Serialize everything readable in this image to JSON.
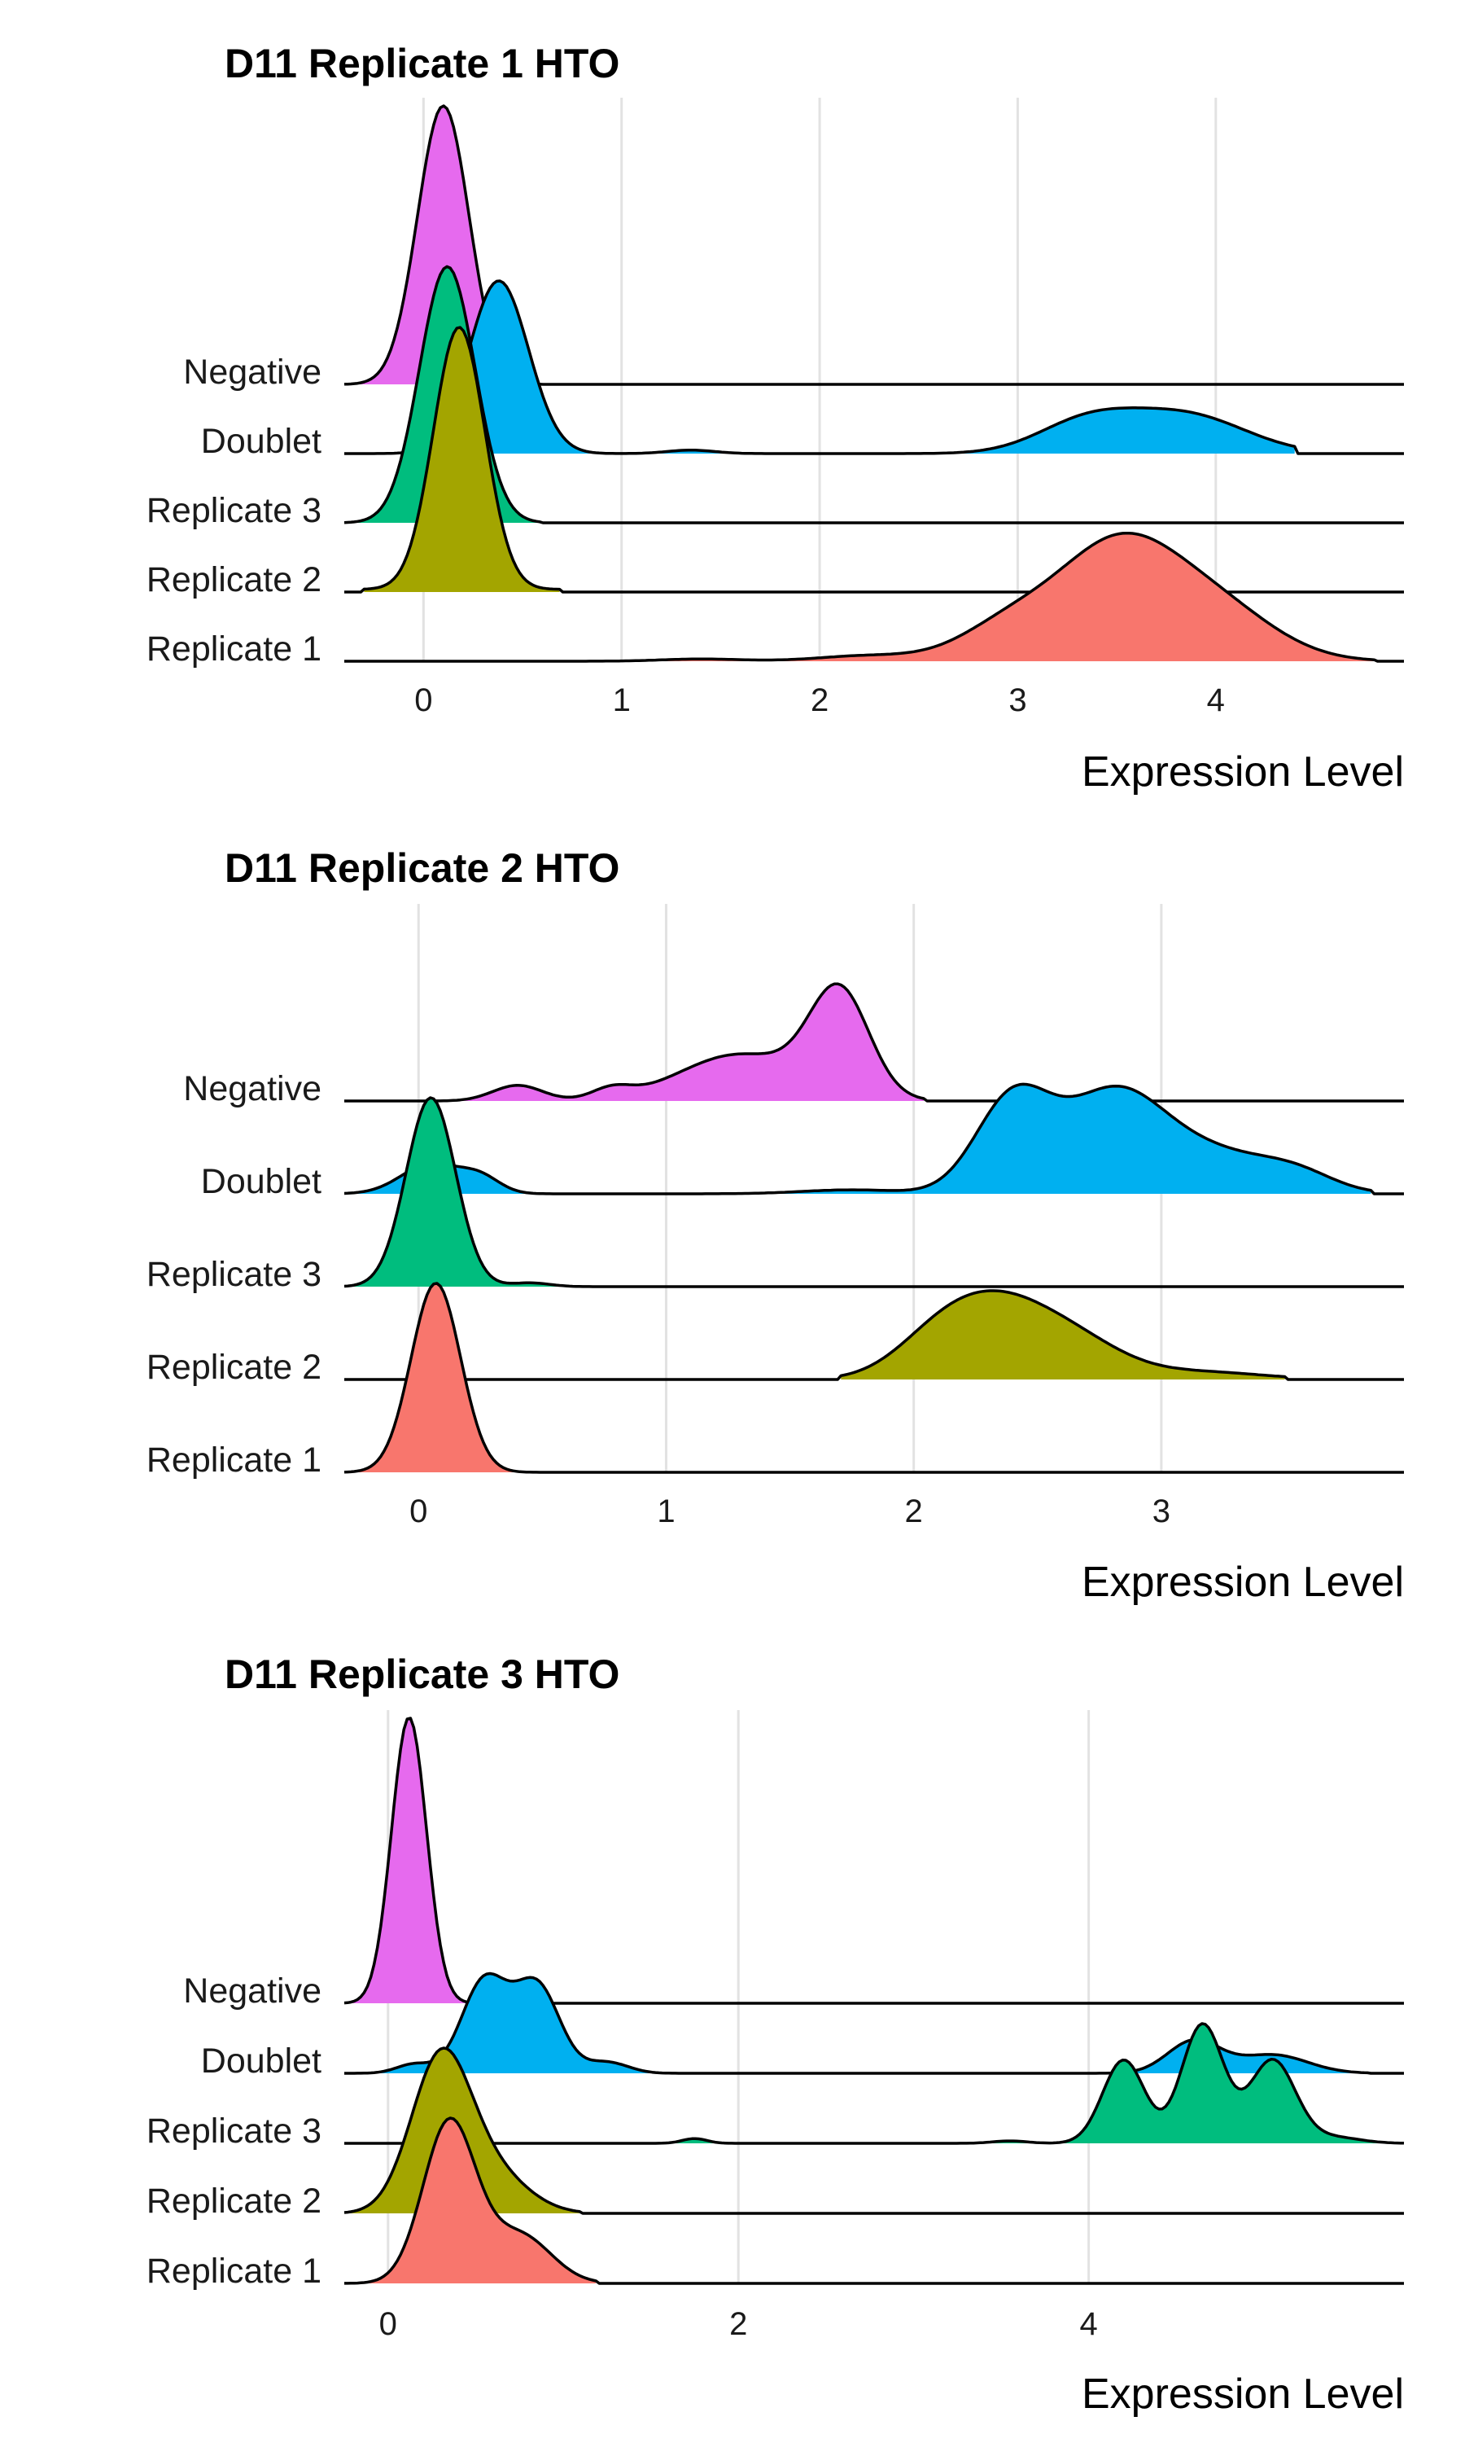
{
  "colors": {
    "Negative": "#E66AEE",
    "Doublet": "#00B0F0",
    "Replicate 3": "#00BD7E",
    "Replicate 2": "#A3A500",
    "Replicate 1": "#F8766D"
  },
  "chart_data": [
    {
      "type": "ridgeline",
      "title": "D11 Replicate 1 HTO",
      "xlabel": "Expression Level",
      "ylabel": "",
      "xlim": [
        -0.4,
        4.95
      ],
      "xticks": [
        0,
        1,
        2,
        3,
        4
      ],
      "grid": true,
      "legend": "none",
      "categories": [
        "Negative",
        "Doublet",
        "Replicate 3",
        "Replicate 2",
        "Replicate 1"
      ],
      "series": [
        {
          "name": "Negative",
          "x_range": [
            -0.4,
            0.6
          ],
          "peak_height": 1.0,
          "peaks": [
            [
              0.1,
              1.0,
              0.13
            ]
          ],
          "tail": 0.0
        },
        {
          "name": "Doublet",
          "x_range": [
            -0.4,
            4.4
          ],
          "peak_height": 0.62,
          "peaks": [
            [
              0.38,
              1.0,
              0.15
            ],
            [
              1.35,
              0.02,
              0.12
            ],
            [
              3.35,
              0.18,
              0.25
            ],
            [
              3.85,
              0.22,
              0.3
            ]
          ],
          "tail": 0.0
        },
        {
          "name": "Replicate 3",
          "x_range": [
            -0.4,
            0.6
          ],
          "peak_height": 0.92,
          "peaks": [
            [
              0.12,
              1.0,
              0.14
            ]
          ],
          "tail": 0.0
        },
        {
          "name": "Replicate 2",
          "x_range": [
            -0.3,
            0.7
          ],
          "peak_height": 0.95,
          "peaks": [
            [
              0.18,
              1.0,
              0.13
            ]
          ],
          "tail": 0.01
        },
        {
          "name": "Replicate 1",
          "x_range": [
            -0.4,
            4.8
          ],
          "peak_height": 0.46,
          "peaks": [
            [
              1.4,
              0.02,
              0.2
            ],
            [
              2.25,
              0.05,
              0.25
            ],
            [
              2.95,
              0.3,
              0.25
            ],
            [
              3.5,
              1.0,
              0.3
            ],
            [
              4.0,
              0.45,
              0.3
            ]
          ],
          "tail": 0.0
        }
      ]
    },
    {
      "type": "ridgeline",
      "title": "D11 Replicate 2 HTO",
      "xlabel": "Expression Level",
      "ylabel": "",
      "xlim": [
        -0.3,
        3.98
      ],
      "xticks": [
        0,
        1,
        2,
        3
      ],
      "grid": true,
      "legend": "none",
      "categories": [
        "Negative",
        "Doublet",
        "Replicate 3",
        "Replicate 2",
        "Replicate 1"
      ],
      "series": [
        {
          "name": "Negative",
          "x_range": [
            -0.3,
            2.05
          ],
          "peak_height": 0.62,
          "peaks": [
            [
              0.4,
              0.15,
              0.1
            ],
            [
              0.78,
              0.1,
              0.08
            ],
            [
              1.3,
              0.45,
              0.25
            ],
            [
              1.7,
              1.0,
              0.12
            ]
          ],
          "tail": 0.0
        },
        {
          "name": "Doublet",
          "x_range": [
            -0.3,
            3.85
          ],
          "peak_height": 0.58,
          "peaks": [
            [
              0.05,
              0.3,
              0.12
            ],
            [
              0.25,
              0.15,
              0.08
            ],
            [
              1.75,
              0.04,
              0.2
            ],
            [
              2.4,
              0.95,
              0.15
            ],
            [
              2.8,
              0.95,
              0.2
            ],
            [
              3.2,
              0.4,
              0.25
            ],
            [
              3.55,
              0.15,
              0.15
            ]
          ],
          "tail": 0.0
        },
        {
          "name": "Replicate 3",
          "x_range": [
            -0.3,
            0.7
          ],
          "peak_height": 1.0,
          "peaks": [
            [
              0.05,
              1.0,
              0.1
            ],
            [
              0.45,
              0.02,
              0.08
            ]
          ],
          "tail": 0.0
        },
        {
          "name": "Replicate 2",
          "x_range": [
            1.7,
            3.5
          ],
          "peak_height": 0.47,
          "peaks": [
            [
              2.1,
              0.6,
              0.18
            ],
            [
              2.35,
              1.0,
              0.2
            ],
            [
              2.65,
              0.55,
              0.2
            ],
            [
              3.15,
              0.12,
              0.25
            ]
          ],
          "tail": 0.0
        },
        {
          "name": "Replicate 1",
          "x_range": [
            -0.3,
            0.6
          ],
          "peak_height": 1.0,
          "peaks": [
            [
              0.07,
              1.0,
              0.1
            ]
          ],
          "tail": 0.0
        }
      ]
    },
    {
      "type": "ridgeline",
      "title": "D11 Replicate 3 HTO",
      "xlabel": "Expression Level",
      "ylabel": "",
      "xlim": [
        -0.25,
        5.8
      ],
      "xticks": [
        0,
        2,
        4
      ],
      "grid": true,
      "legend": "none",
      "categories": [
        "Negative",
        "Doublet",
        "Replicate 3",
        "Replicate 2",
        "Replicate 1"
      ],
      "series": [
        {
          "name": "Negative",
          "x_range": [
            -0.25,
            0.7
          ],
          "peak_height": 1.0,
          "peaks": [
            [
              0.12,
              1.0,
              0.1
            ]
          ],
          "tail": 0.0
        },
        {
          "name": "Doublet",
          "x_range": [
            -0.25,
            5.6
          ],
          "peak_height": 0.35,
          "peaks": [
            [
              0.15,
              0.1,
              0.1
            ],
            [
              0.55,
              1.0,
              0.13
            ],
            [
              0.85,
              0.95,
              0.13
            ],
            [
              1.25,
              0.12,
              0.12
            ],
            [
              4.6,
              0.35,
              0.15
            ],
            [
              5.05,
              0.2,
              0.2
            ]
          ],
          "tail": 0.0
        },
        {
          "name": "Replicate 3",
          "x_range": [
            -0.25,
            5.8
          ],
          "peak_height": 0.42,
          "peaks": [
            [
              1.75,
              0.04,
              0.07
            ],
            [
              3.55,
              0.02,
              0.1
            ],
            [
              4.2,
              0.7,
              0.12
            ],
            [
              4.65,
              1.0,
              0.12
            ],
            [
              5.05,
              0.7,
              0.13
            ],
            [
              5.4,
              0.05,
              0.15
            ]
          ],
          "tail": 0.0
        },
        {
          "name": "Replicate 2",
          "x_range": [
            -0.25,
            1.1
          ],
          "peak_height": 0.58,
          "peaks": [
            [
              0.3,
              1.0,
              0.17
            ],
            [
              0.6,
              0.25,
              0.2
            ]
          ],
          "tail": 0.0
        },
        {
          "name": "Replicate 1",
          "x_range": [
            -0.25,
            1.2
          ],
          "peak_height": 0.58,
          "peaks": [
            [
              0.35,
              1.0,
              0.15
            ],
            [
              0.75,
              0.3,
              0.18
            ]
          ],
          "tail": 0.0
        }
      ]
    }
  ]
}
